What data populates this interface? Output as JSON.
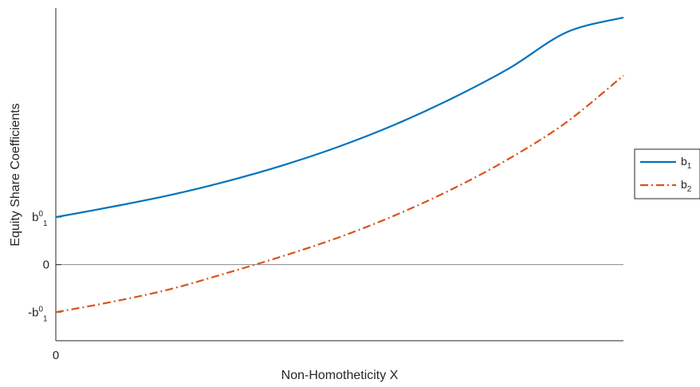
{
  "chart_data": {
    "type": "line",
    "xlabel": "Non-Homotheticity X",
    "ylabel": "Equity Share Coefficients",
    "xlim": [
      0,
      1
    ],
    "ylim": [
      -1.6,
      5.4
    ],
    "x_tick_labels": [
      {
        "value": 0,
        "label": "0"
      }
    ],
    "y_tick_labels": [
      {
        "value": 1,
        "base": "b",
        "sup": "0",
        "sub": "1",
        "prefix": ""
      },
      {
        "value": 0,
        "base": "0",
        "sup": "",
        "sub": "",
        "prefix": ""
      },
      {
        "value": -1,
        "base": "b",
        "sup": "0",
        "sub": "1",
        "prefix": "-"
      }
    ],
    "zero_line": true,
    "grid": false,
    "legend_position": "right",
    "series": [
      {
        "name": "b",
        "name_sub": "1",
        "color": "#0072BD",
        "style": "solid",
        "x": [
          0,
          0.1,
          0.2,
          0.3,
          0.4,
          0.5,
          0.6,
          0.7,
          0.8,
          0.9,
          1.0
        ],
        "y": [
          1.0,
          1.22,
          1.46,
          1.75,
          2.09,
          2.49,
          2.96,
          3.51,
          4.14,
          4.89,
          5.2
        ]
      },
      {
        "name": "b",
        "name_sub": "2",
        "color": "#D95319",
        "style": "dashdot",
        "x": [
          0,
          0.1,
          0.2,
          0.3,
          0.4,
          0.5,
          0.6,
          0.7,
          0.8,
          0.9,
          1.0
        ],
        "y": [
          -1.0,
          -0.78,
          -0.52,
          -0.18,
          0.18,
          0.58,
          1.05,
          1.6,
          2.24,
          3.0,
          3.98
        ]
      }
    ]
  }
}
